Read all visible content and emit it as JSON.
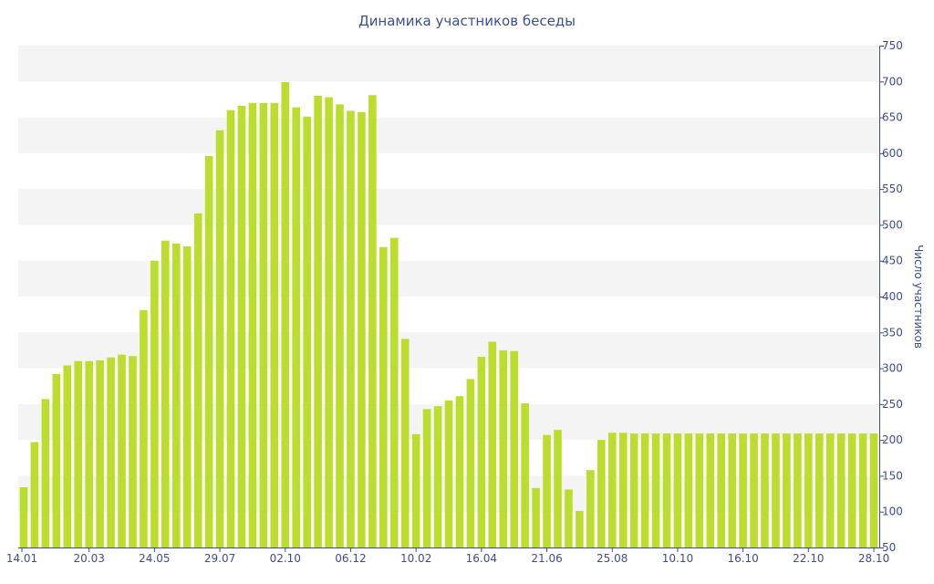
{
  "chart_data": {
    "type": "bar",
    "title": "Динамика участников беседы",
    "xlabel": "",
    "ylabel": "Число участников",
    "y_axis_side": "right",
    "ylim": [
      50,
      750
    ],
    "y_ticks": [
      50,
      100,
      150,
      200,
      250,
      300,
      350,
      400,
      450,
      500,
      550,
      600,
      650,
      700,
      750
    ],
    "x_tick_labels": [
      {
        "index": 0,
        "label": "14.01"
      },
      {
        "index": 6,
        "label": "20.03"
      },
      {
        "index": 12,
        "label": "24.05"
      },
      {
        "index": 18,
        "label": "29.07"
      },
      {
        "index": 24,
        "label": "02.10"
      },
      {
        "index": 30,
        "label": "06.12"
      },
      {
        "index": 36,
        "label": "10.02"
      },
      {
        "index": 42,
        "label": "16.04"
      },
      {
        "index": 48,
        "label": "21.06"
      },
      {
        "index": 54,
        "label": "25.08"
      },
      {
        "index": 60,
        "label": "10.10"
      },
      {
        "index": 66,
        "label": "16.10"
      },
      {
        "index": 72,
        "label": "22.10"
      },
      {
        "index": 78,
        "label": "28.10"
      }
    ],
    "grid": "horizontal alternating bands",
    "colors": {
      "bar": "#bbdd2d",
      "band": "#f4f4f4",
      "axis": "#3e4e8c",
      "text": "#3e4e8c"
    },
    "values": [
      134,
      197,
      257,
      292,
      304,
      310,
      310,
      311,
      315,
      319,
      317,
      381,
      450,
      478,
      474,
      470,
      516,
      596,
      632,
      660,
      666,
      670,
      670,
      670,
      699,
      664,
      651,
      680,
      678,
      668,
      659,
      657,
      681,
      469,
      482,
      341,
      208,
      243,
      247,
      255,
      261,
      285,
      316,
      337,
      325,
      324,
      251,
      133,
      207,
      214,
      131,
      101,
      158,
      200,
      210,
      210,
      209,
      209,
      209,
      209,
      209,
      209,
      209,
      209,
      209,
      209,
      209,
      209,
      209,
      209,
      209,
      209,
      209,
      209,
      209,
      209,
      209,
      209,
      209
    ]
  }
}
